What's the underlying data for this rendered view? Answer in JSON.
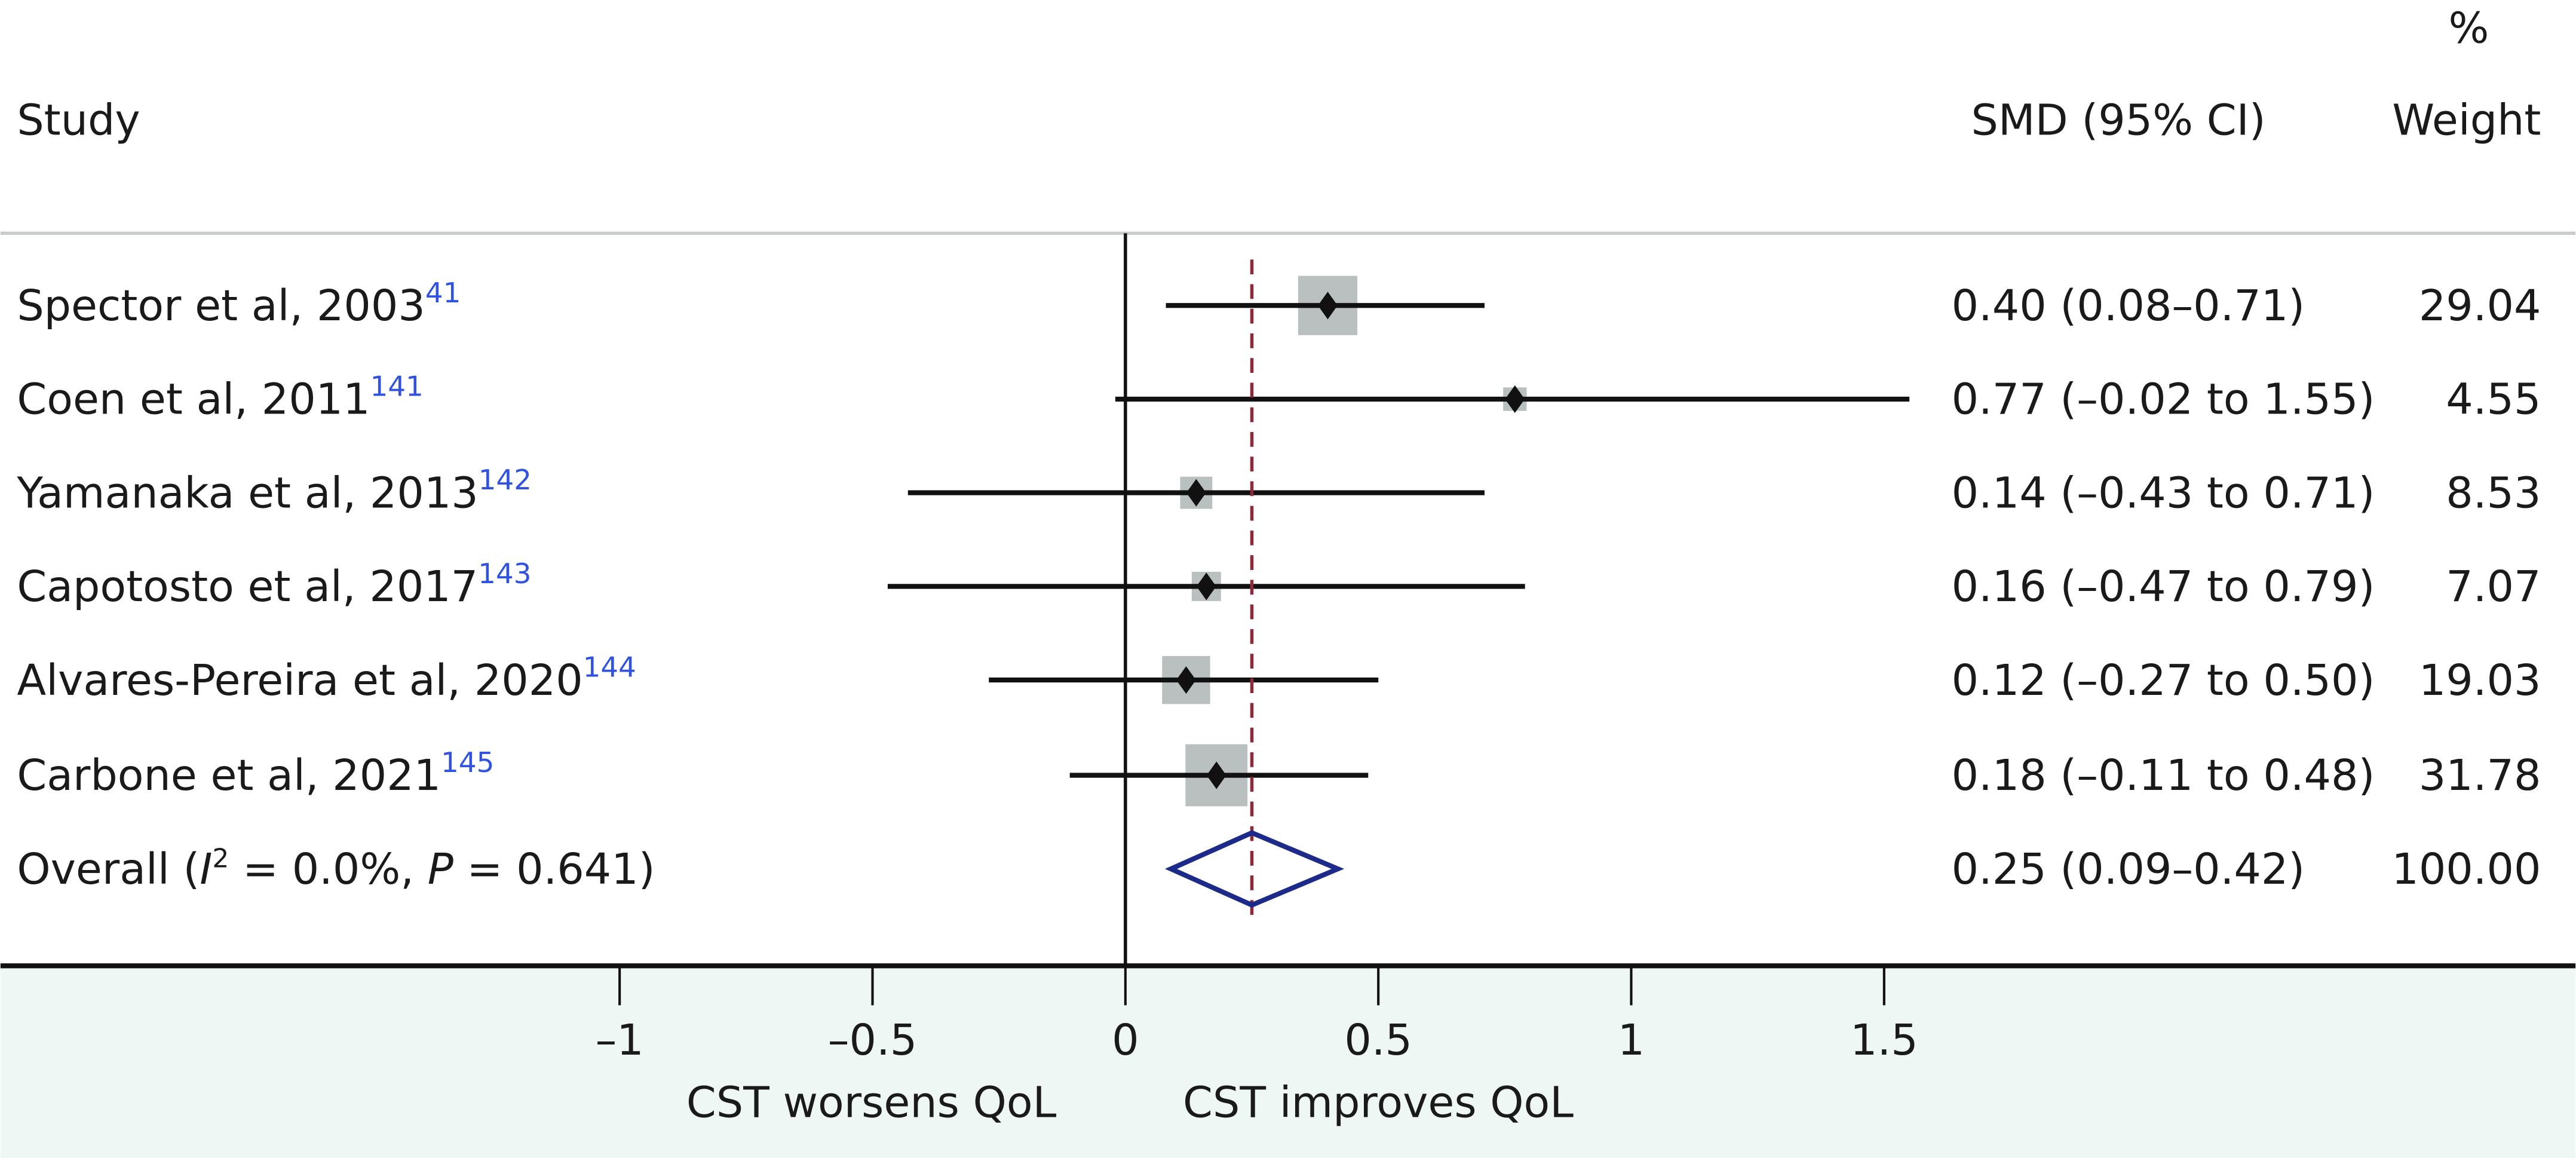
{
  "chart_data": {
    "type": "forest",
    "headers": {
      "study": "Study",
      "smd": "SMD (95% CI)",
      "weight_pct": "%",
      "weight": "Weight"
    },
    "studies": [
      {
        "label": "Spector et al, 2003",
        "ref": "41",
        "smd": 0.4,
        "lo": 0.08,
        "hi": 0.71,
        "ci_text": "0.40 (0.08–0.71)",
        "weight": 29.04,
        "weight_text": "29.04"
      },
      {
        "label": "Coen et al, 2011",
        "ref": "141",
        "smd": 0.77,
        "lo": -0.02,
        "hi": 1.55,
        "ci_text": "0.77 (–0.02 to 1.55)",
        "weight": 4.55,
        "weight_text": "4.55"
      },
      {
        "label": "Yamanaka et al, 2013",
        "ref": "142",
        "smd": 0.14,
        "lo": -0.43,
        "hi": 0.71,
        "ci_text": "0.14 (–0.43 to 0.71)",
        "weight": 8.53,
        "weight_text": "8.53"
      },
      {
        "label": "Capotosto et al, 2017",
        "ref": "143",
        "smd": 0.16,
        "lo": -0.47,
        "hi": 0.79,
        "ci_text": "0.16 (–0.47 to 0.79)",
        "weight": 7.07,
        "weight_text": "7.07"
      },
      {
        "label": "Alvares-Pereira et al, 2020",
        "ref": "144",
        "smd": 0.12,
        "lo": -0.27,
        "hi": 0.5,
        "ci_text": "0.12 (–0.27 to 0.50)",
        "weight": 19.03,
        "weight_text": "19.03"
      },
      {
        "label": "Carbone et al, 2021",
        "ref": "145",
        "smd": 0.18,
        "lo": -0.11,
        "hi": 0.48,
        "ci_text": "0.18 (–0.11 to 0.48)",
        "weight": 31.78,
        "weight_text": "31.78"
      }
    ],
    "overall": {
      "label_prefix": "Overall (",
      "i2_symbol": "I",
      "i2_exp": "2",
      "i2_text": " = 0.0%, ",
      "p_symbol": "P",
      "p_text": " = 0.641)",
      "smd": 0.25,
      "lo": 0.09,
      "hi": 0.42,
      "ci_text": "0.25 (0.09–0.42)",
      "weight_text": "100.00"
    },
    "x_ticks": [
      -1,
      -0.5,
      0,
      0.5,
      1,
      1.5
    ],
    "x_tick_labels": [
      "–1",
      "–0.5",
      "0",
      "0.5",
      "1",
      "1.5"
    ],
    "xlim": [
      -1,
      1.5
    ],
    "null_line": 0,
    "xlabel_left": "CST worsens QoL",
    "xlabel_right": "CST improves QoL",
    "colors": {
      "box": "#b9c0bf",
      "diamond": "#1c2a8a",
      "overall_line": "#8c2a3a",
      "ref": "#2f52e0",
      "axis_panel": "#eef7f4",
      "header_rule": "#c8cdcc"
    }
  }
}
